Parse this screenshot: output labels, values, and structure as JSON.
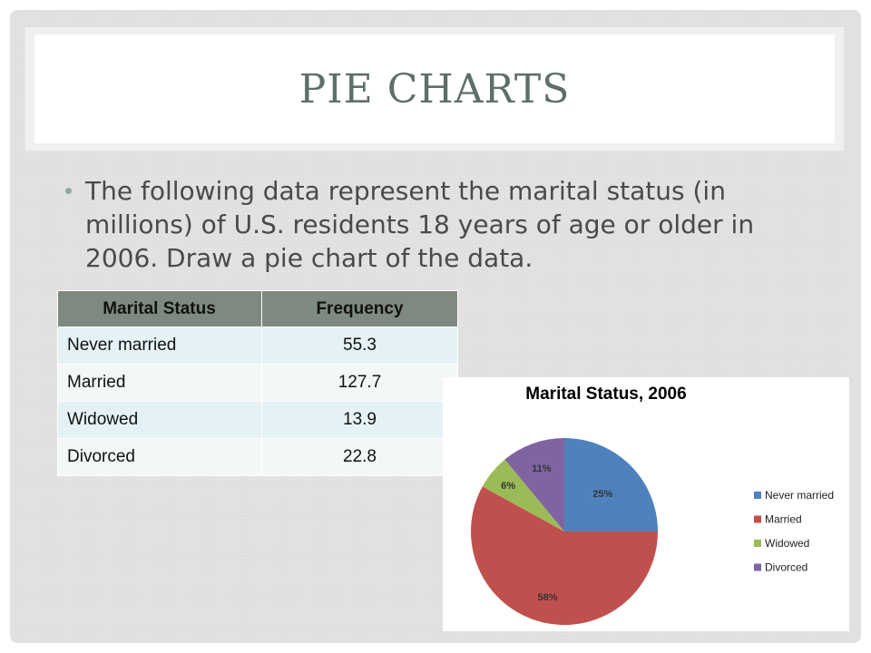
{
  "slide": {
    "title": "PIE CHARTS",
    "bullet": "The following data represent the marital status (in millions) of U.S. residents 18 years of age or older in 2006.  Draw a pie chart of the data."
  },
  "table": {
    "headers": [
      "Marital Status",
      "Frequency"
    ],
    "rows": [
      [
        "Never married",
        "55.3"
      ],
      [
        "Married",
        "127.7"
      ],
      [
        "Widowed",
        "13.9"
      ],
      [
        "Divorced",
        "22.8"
      ]
    ]
  },
  "chart_data": {
    "type": "pie",
    "title": "Marital Status, 2006",
    "categories": [
      "Never married",
      "Married",
      "Widowed",
      "Divorced"
    ],
    "values": [
      25,
      58,
      6,
      11
    ],
    "labels": [
      "25%",
      "58%",
      "6%",
      "11%"
    ],
    "colors": [
      "#4f81bd",
      "#c0504d",
      "#9bbb59",
      "#8064a2"
    ],
    "legend_position": "right"
  }
}
